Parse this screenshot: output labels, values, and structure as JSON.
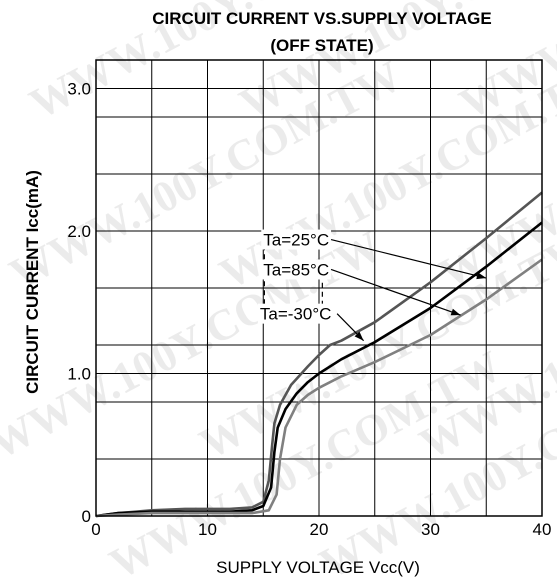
{
  "chart_data": {
    "type": "line",
    "title_line1": "CIRCUIT CURRENT VS.SUPPLY VOLTAGE",
    "title_line2": "(OFF STATE)",
    "xlabel": "SUPPLY VOLTAGE Vcc(V)",
    "ylabel": "CIRCUIT CURRENT Icc(mA)",
    "xlim": [
      0,
      40
    ],
    "ylim": [
      0,
      3.2
    ],
    "x_ticks": [
      0,
      10,
      20,
      30,
      40
    ],
    "x_tick_labels": [
      "0",
      "10",
      "20",
      "30",
      "40"
    ],
    "y_ticks": [
      0,
      1.0,
      2.0,
      3.0
    ],
    "y_tick_labels": [
      "0",
      "1.0",
      "2.0",
      "3.0"
    ],
    "grid": true,
    "x_grid": [
      0,
      5,
      10,
      15,
      20,
      25,
      30,
      35,
      40
    ],
    "y_grid": [
      0,
      0.4,
      0.8,
      1.0,
      1.2,
      1.6,
      2.0,
      2.4,
      2.8,
      3.0
    ],
    "series": [
      {
        "name": "Ta=25°C",
        "color": "#555555",
        "x": [
          0,
          2,
          5,
          8,
          10,
          12,
          14,
          15,
          15.5,
          15.8,
          16.0,
          16.5,
          17.5,
          19,
          20,
          21,
          22,
          25,
          30,
          35,
          40
        ],
        "y": [
          0,
          0.02,
          0.04,
          0.05,
          0.05,
          0.05,
          0.06,
          0.1,
          0.25,
          0.5,
          0.65,
          0.78,
          0.92,
          1.05,
          1.13,
          1.2,
          1.23,
          1.36,
          1.64,
          1.95,
          2.27
        ]
      },
      {
        "name": "Ta=85°C",
        "color": "#000000",
        "x": [
          0,
          2,
          5,
          8,
          10,
          12,
          14,
          15,
          15.7,
          16.0,
          16.3,
          17,
          18,
          19,
          20,
          22,
          25,
          30,
          35,
          40
        ],
        "y": [
          0,
          0.02,
          0.03,
          0.03,
          0.03,
          0.03,
          0.04,
          0.07,
          0.2,
          0.45,
          0.62,
          0.75,
          0.86,
          0.94,
          1.0,
          1.1,
          1.22,
          1.46,
          1.75,
          2.06
        ]
      },
      {
        "name": "Ta=-30°C",
        "color": "#808080",
        "x": [
          0,
          2,
          5,
          8,
          10,
          12,
          14,
          15.5,
          16.2,
          16.5,
          17,
          18,
          19,
          20,
          22,
          25,
          30,
          35,
          40
        ],
        "y": [
          0,
          0.01,
          0.02,
          0.02,
          0.02,
          0.02,
          0.02,
          0.04,
          0.15,
          0.4,
          0.62,
          0.78,
          0.85,
          0.9,
          0.98,
          1.08,
          1.27,
          1.52,
          1.8
        ]
      }
    ],
    "annotations": [
      {
        "text": "Ta=25°C",
        "label_x": 15.0,
        "label_y": 1.94,
        "target_x": 35.0,
        "target_y": 1.67
      },
      {
        "text": "Ta=85°C",
        "label_x": 15.0,
        "label_y": 1.73,
        "target_x": 32.7,
        "target_y": 1.41
      },
      {
        "text": "Ta=-30°C",
        "label_x": 14.7,
        "label_y": 1.42,
        "target_x": 24.0,
        "target_y": 1.23
      }
    ],
    "annotation_color": "#000000",
    "axis_color": "#000000",
    "grid_color": "#000000",
    "background": "#ffffff"
  },
  "watermark": "WWW.100Y.COM.TW"
}
